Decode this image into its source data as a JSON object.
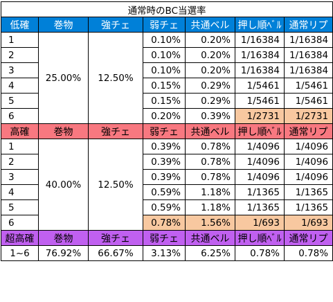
{
  "title": "通常時のBC当選率",
  "headers": {
    "low": [
      "低確",
      "巻物",
      "強チェ",
      "弱チェ",
      "共通ベル",
      "押し順ﾍﾞﾙ",
      "通常リプ"
    ],
    "high": [
      "高確",
      "巻物",
      "強チェ",
      "弱チェ",
      "共通ベル",
      "押し順ﾍﾞﾙ",
      "通常リプ"
    ],
    "super": [
      "超高確",
      "巻物",
      "強チェ",
      "弱チェ",
      "共通ベル",
      "押し順ﾍﾞﾙ",
      "通常リプ"
    ]
  },
  "low": {
    "scroll": "25.00%",
    "strong_cherry": "12.50%",
    "rows": [
      [
        "1",
        "0.10%",
        "0.20%",
        "1/16384",
        "1/16384"
      ],
      [
        "2",
        "0.10%",
        "0.20%",
        "1/16384",
        "1/16384"
      ],
      [
        "3",
        "0.10%",
        "0.20%",
        "1/16384",
        "1/16384"
      ],
      [
        "4",
        "0.15%",
        "0.29%",
        "1/5461",
        "1/5461"
      ],
      [
        "5",
        "0.15%",
        "0.29%",
        "1/5461",
        "1/5461"
      ],
      [
        "6",
        "0.20%",
        "0.39%",
        "1/2731",
        "1/2731"
      ]
    ]
  },
  "high": {
    "scroll": "40.00%",
    "strong_cherry": "12.50%",
    "rows": [
      [
        "1",
        "0.39%",
        "0.78%",
        "1/4096",
        "1/4096"
      ],
      [
        "2",
        "0.39%",
        "0.78%",
        "1/4096",
        "1/4096"
      ],
      [
        "3",
        "0.39%",
        "0.78%",
        "1/4096",
        "1/4096"
      ],
      [
        "4",
        "0.59%",
        "1.18%",
        "1/1365",
        "1/1365"
      ],
      [
        "5",
        "0.59%",
        "1.18%",
        "1/1365",
        "1/1365"
      ],
      [
        "6",
        "0.78%",
        "1.56%",
        "1/693",
        "1/693"
      ]
    ]
  },
  "super": {
    "row": [
      "1~6",
      "76.92%",
      "66.67%",
      "3.13%",
      "6.25%",
      "0.78%",
      "0.78%"
    ]
  },
  "colors": {
    "low_header": "#0080d8",
    "high_header": "#f87880",
    "super_header": "#c060f0",
    "highlight": "#f8c8a0"
  }
}
